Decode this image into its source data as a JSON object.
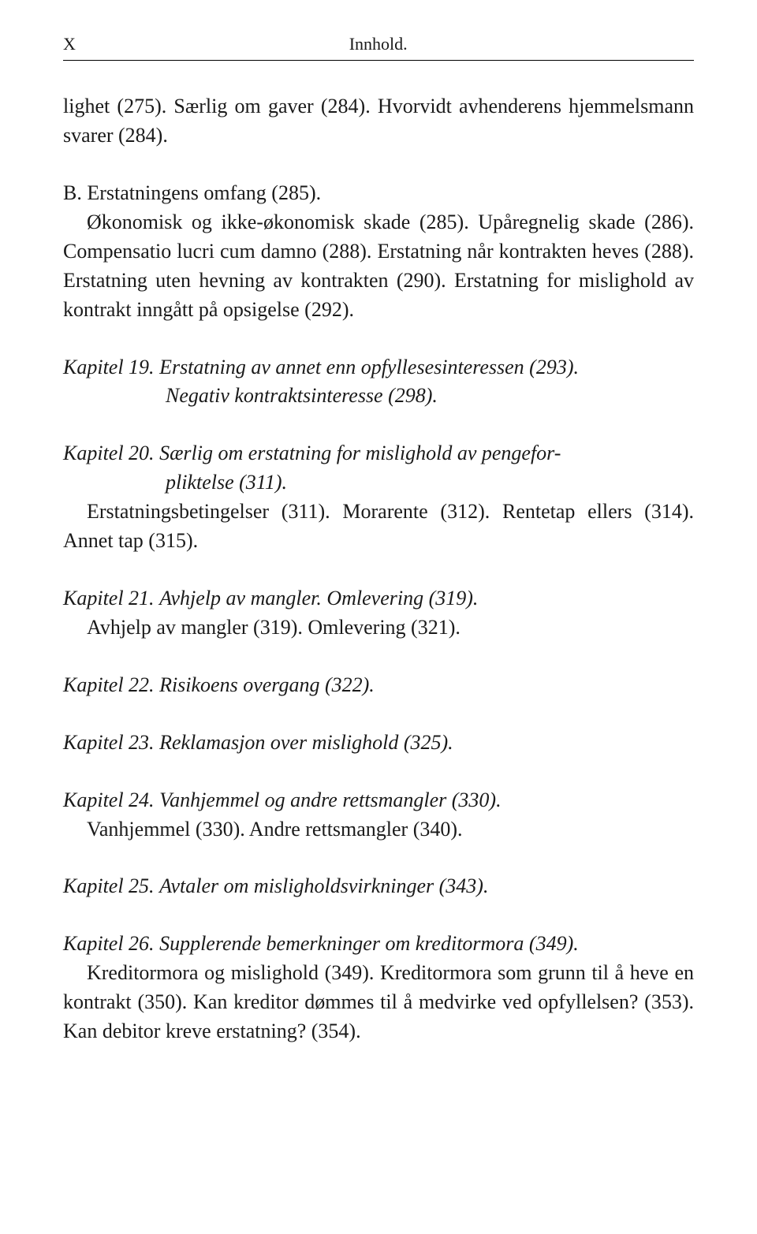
{
  "header": {
    "pageMarker": "X",
    "title": "Innhold."
  },
  "intro": {
    "text": "lighet (275). Særlig om gaver (284). Hvorvidt avhenderens hjemmelsmann svarer (284)."
  },
  "sectionB": {
    "title": "B. Erstatningens omfang (285).",
    "text": "Økonomisk og ikke-økonomisk skade (285). Upåregnelig skade (286). Compensatio lucri cum damno (288). Erstatning når kontrakten heves (288). Erstatning uten hevning av kontrakten (290). Erstatning for mislighold av kontrakt inngått på opsigelse (292)."
  },
  "kapitel19": {
    "label": "Kapitel 19.",
    "titleLine1": "Erstatning av annet enn opfyllesesinteressen (293).",
    "titleLine2": "Negativ kontraktsinteresse (298)."
  },
  "kapitel20": {
    "label": "Kapitel 20.",
    "titleLine1": "Særlig om erstatning for mislighold av pengefor-",
    "titleLine2": "pliktelse (311).",
    "sub": "Erstatningsbetingelser (311). Morarente (312). Rentetap ellers (314). Annet tap (315)."
  },
  "kapitel21": {
    "label": "Kapitel 21.",
    "title": "Avhjelp av mangler. Omlevering (319).",
    "sub": "Avhjelp av mangler (319). Omlevering (321)."
  },
  "kapitel22": {
    "label": "Kapitel 22.",
    "title": "Risikoens overgang (322)."
  },
  "kapitel23": {
    "label": "Kapitel 23.",
    "title": "Reklamasjon over mislighold (325)."
  },
  "kapitel24": {
    "label": "Kapitel 24.",
    "title": "Vanhjemmel og andre rettsmangler (330).",
    "sub": "Vanhjemmel (330). Andre rettsmangler (340)."
  },
  "kapitel25": {
    "label": "Kapitel 25.",
    "title": "Avtaler om misligholdsvirkninger (343)."
  },
  "kapitel26": {
    "label": "Kapitel 26.",
    "title": "Supplerende bemerkninger om kreditormora (349).",
    "sub": "Kreditormora og mislighold (349). Kreditormora som grunn til å heve en kontrakt (350). Kan kreditor dømmes til å medvirke ved opfyllelsen? (353). Kan debitor kreve erstatning? (354)."
  }
}
